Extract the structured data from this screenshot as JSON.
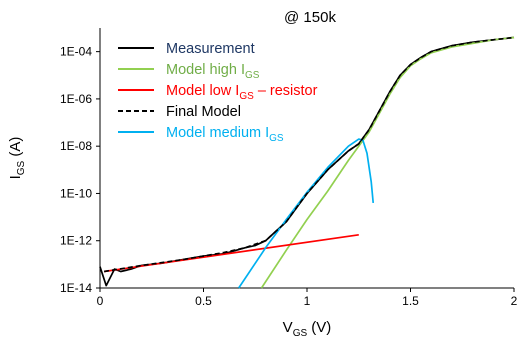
{
  "chart_data": {
    "type": "line",
    "title": "@ 150k",
    "xlabel": {
      "main": "V",
      "sub": "GS",
      "unit": " (V)"
    },
    "ylabel": {
      "main": "I",
      "sub": "GS",
      "unit": " (A)"
    },
    "xlim": [
      0,
      2
    ],
    "ylim_log10": [
      -14,
      -3
    ],
    "y_scale": "log",
    "x_ticks": [
      0,
      0.5,
      1,
      1.5,
      2
    ],
    "x_tick_labels": [
      "0",
      "0.5",
      "1",
      "1.5",
      "2"
    ],
    "y_ticks_log10": [
      -14,
      -12,
      -10,
      -8,
      -6,
      -4
    ],
    "y_tick_labels": [
      "1E-14",
      "1E-12",
      "1E-10",
      "1E-08",
      "1E-06",
      "1E-04"
    ],
    "grid": false,
    "legend_position": "top-left",
    "series": [
      {
        "name": {
          "main": "Measurement",
          "sub": "",
          "tail": ""
        },
        "label_color": "#1f3864",
        "color": "#000000",
        "dash": "solid",
        "x": [
          0,
          0.03,
          0.07,
          0.1,
          0.15,
          0.2,
          0.3,
          0.4,
          0.5,
          0.6,
          0.7,
          0.75,
          0.8,
          0.85,
          0.9,
          0.95,
          1.0,
          1.05,
          1.1,
          1.15,
          1.2,
          1.25,
          1.3,
          1.35,
          1.4,
          1.45,
          1.5,
          1.55,
          1.6,
          1.7,
          1.8,
          1.9,
          2.0
        ],
        "log10_y": [
          -13.1,
          -13.9,
          -13.2,
          -13.3,
          -13.2,
          -13.05,
          -12.95,
          -12.8,
          -12.65,
          -12.55,
          -12.3,
          -12.2,
          -12.0,
          -11.6,
          -11.2,
          -10.6,
          -10.0,
          -9.5,
          -9.0,
          -8.6,
          -8.2,
          -7.9,
          -7.3,
          -6.5,
          -5.7,
          -5.0,
          -4.55,
          -4.25,
          -4.0,
          -3.75,
          -3.6,
          -3.5,
          -3.4
        ]
      },
      {
        "name": {
          "main": "Model high I",
          "sub": "GS",
          "tail": ""
        },
        "label_color": "#70ad47",
        "color": "#92d050",
        "dash": "solid",
        "x": [
          0.78,
          0.9,
          1.0,
          1.1,
          1.2,
          1.3,
          1.35,
          1.4,
          1.45,
          1.5,
          1.55,
          1.6,
          1.7,
          1.8,
          1.9,
          2.0
        ],
        "log10_y": [
          -14.0,
          -12.4,
          -11.1,
          -9.9,
          -8.6,
          -7.4,
          -6.6,
          -5.8,
          -5.1,
          -4.6,
          -4.3,
          -4.05,
          -3.8,
          -3.65,
          -3.5,
          -3.4
        ]
      },
      {
        "name": {
          "main": "Model low I",
          "sub": "GS",
          "tail": " – resistor"
        },
        "label_color": "#ff0000",
        "color": "#ff0000",
        "dash": "solid",
        "x": [
          0.02,
          1.25
        ],
        "log10_y": [
          -13.3,
          -11.75
        ]
      },
      {
        "name": {
          "main": "Final Model",
          "sub": "",
          "tail": ""
        },
        "label_color": "#000000",
        "color": "#000000",
        "dash": "dashed",
        "x": [
          0.02,
          0.2,
          0.4,
          0.6,
          0.7,
          0.8,
          0.85,
          0.9,
          0.95,
          1.0,
          1.05,
          1.1,
          1.15,
          1.2,
          1.25,
          1.3,
          1.35,
          1.4,
          1.45,
          1.5,
          1.55,
          1.6,
          1.7,
          1.8,
          1.9,
          2.0
        ],
        "log10_y": [
          -13.3,
          -13.05,
          -12.8,
          -12.5,
          -12.3,
          -12.0,
          -11.6,
          -11.2,
          -10.6,
          -10.0,
          -9.5,
          -9.0,
          -8.6,
          -8.2,
          -7.9,
          -7.3,
          -6.5,
          -5.7,
          -5.0,
          -4.55,
          -4.25,
          -4.0,
          -3.75,
          -3.6,
          -3.5,
          -3.4
        ]
      },
      {
        "name": {
          "main": "Model medium I",
          "sub": "GS",
          "tail": ""
        },
        "label_color": "#00b0f0",
        "color": "#00b0f0",
        "dash": "solid",
        "x": [
          0.67,
          0.8,
          0.9,
          1.0,
          1.1,
          1.2,
          1.25,
          1.27,
          1.29,
          1.31,
          1.32
        ],
        "log10_y": [
          -14.0,
          -12.3,
          -11.1,
          -9.95,
          -8.9,
          -8.0,
          -7.7,
          -7.75,
          -8.3,
          -9.5,
          -10.4
        ]
      }
    ]
  }
}
